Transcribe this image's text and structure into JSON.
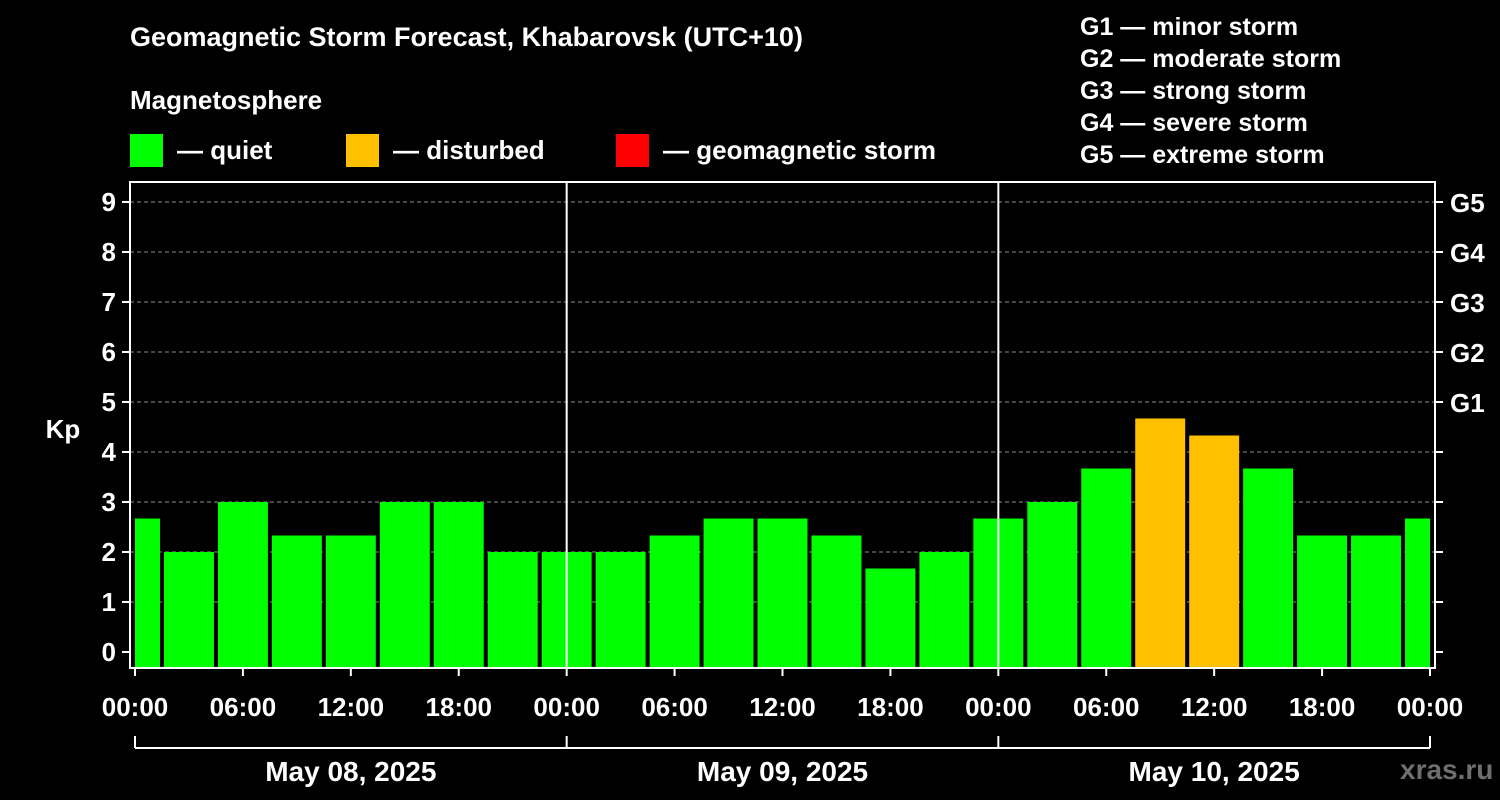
{
  "header": {
    "title": "Geomagnetic Storm Forecast, Khabarovsk (UTC+10)",
    "subtitle": "Magnetosphere"
  },
  "legend": [
    {
      "label": "— quiet",
      "color": "#00ff00"
    },
    {
      "label": "— disturbed",
      "color": "#ffc000"
    },
    {
      "label": "— geomagnetic storm",
      "color": "#ff0000"
    }
  ],
  "storm_scale": [
    "G1 — minor storm",
    "G2 — moderate storm",
    "G3 — strong storm",
    "G4 — severe storm",
    "G5 — extreme storm"
  ],
  "watermark": "xras.ru",
  "chart_data": {
    "type": "bar",
    "title": "Geomagnetic Storm Forecast, Khabarovsk (UTC+10)",
    "ylabel": "Kp",
    "ylim": [
      0,
      9
    ],
    "yticks": [
      "0",
      "1",
      "2",
      "3",
      "4",
      "5",
      "6",
      "7",
      "8",
      "9"
    ],
    "right_ticks": [
      {
        "kp": 5,
        "label": "G1"
      },
      {
        "kp": 6,
        "label": "G2"
      },
      {
        "kp": 7,
        "label": "G3"
      },
      {
        "kp": 8,
        "label": "G4"
      },
      {
        "kp": 9,
        "label": "G5"
      }
    ],
    "x_ticks": [
      "00:00",
      "06:00",
      "12:00",
      "18:00",
      "00:00",
      "06:00",
      "12:00",
      "18:00",
      "00:00",
      "06:00",
      "12:00",
      "18:00",
      "00:00"
    ],
    "day_labels": [
      "May 08, 2025",
      "May 09, 2025",
      "May 10, 2025"
    ],
    "hours_total": 72,
    "bar_hours": 3,
    "first_bar_offset_hours": -1.5,
    "values": [
      2.67,
      2.0,
      3.0,
      2.33,
      2.33,
      3.0,
      3.0,
      2.0,
      2.0,
      2.0,
      2.33,
      2.67,
      2.67,
      2.33,
      1.67,
      2.0,
      2.67,
      3.0,
      3.67,
      4.67,
      4.33,
      3.67,
      2.33,
      2.33,
      2.67
    ],
    "thresholds": {
      "disturbed": 4,
      "storm": 5
    },
    "colors": {
      "quiet": "#00ff00",
      "disturbed": "#ffc000",
      "storm": "#ff0000"
    },
    "grid": true
  }
}
